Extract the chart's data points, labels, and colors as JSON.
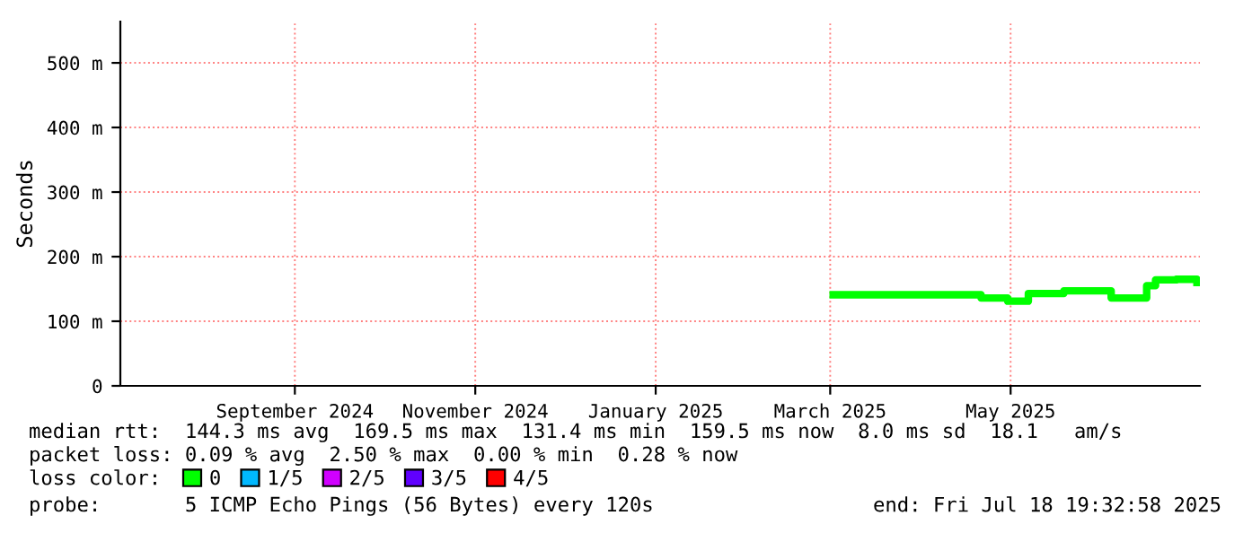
{
  "chart_data": {
    "type": "step",
    "ylabel": "Seconds",
    "x": [
      "2025-03-16",
      "2025-05-05",
      "2025-05-14",
      "2025-05-21",
      "2025-06-02",
      "2025-06-18",
      "2025-06-30",
      "2025-07-03",
      "2025-07-10",
      "2025-07-17"
    ],
    "series": [
      {
        "name": "0",
        "color": "#00ff00",
        "values": [
          141,
          136,
          131,
          143,
          147,
          136,
          155,
          164,
          165,
          160
        ]
      },
      {
        "name": "1/5",
        "color": "#00b8ff",
        "values": [
          null,
          null,
          null,
          null,
          null,
          null,
          null,
          null,
          null,
          null
        ]
      },
      {
        "name": "2/5",
        "color": "#d000ff",
        "values": [
          null,
          null,
          null,
          null,
          null,
          null,
          null,
          null,
          null,
          null
        ]
      },
      {
        "name": "3/5",
        "color": "#6000ff",
        "values": [
          null,
          null,
          null,
          null,
          null,
          null,
          null,
          null,
          null,
          null
        ]
      },
      {
        "name": "4/5",
        "color": "#ff0000",
        "values": [
          null,
          null,
          null,
          null,
          null,
          null,
          null,
          null,
          null,
          null
        ]
      }
    ],
    "xlim": [
      "2024-07-18",
      "2025-07-18"
    ],
    "xticks": [
      {
        "value": "2024-09-15",
        "label": "September 2024"
      },
      {
        "value": "2024-11-15",
        "label": "November 2024"
      },
      {
        "value": "2025-01-15",
        "label": "January 2025"
      },
      {
        "value": "2025-03-15",
        "label": "March 2025"
      },
      {
        "value": "2025-05-15",
        "label": "May 2025"
      }
    ],
    "ylim": [
      0,
      564
    ],
    "yticks": [
      {
        "value": 0,
        "label": "0"
      },
      {
        "value": 100,
        "label": "100 m"
      },
      {
        "value": 200,
        "label": "200 m"
      },
      {
        "value": 300,
        "label": "300 m"
      },
      {
        "value": 400,
        "label": "400 m"
      },
      {
        "value": 500,
        "label": "500 m"
      }
    ],
    "grid": true,
    "legend": "bottom",
    "annotations": [
      "median rtt:  144.3 ms avg  169.5 ms max  131.4 ms min  159.5 ms now  8.0 ms sd  18.1   am/s",
      "packet loss: 0.09 % avg  2.50 % max  0.00 % min  0.28 % now",
      "loss color:",
      "probe:       5 ICMP Echo Pings (56 Bytes) every 120s",
      "end: Fri Jul 18 19:32:58 2025"
    ]
  }
}
